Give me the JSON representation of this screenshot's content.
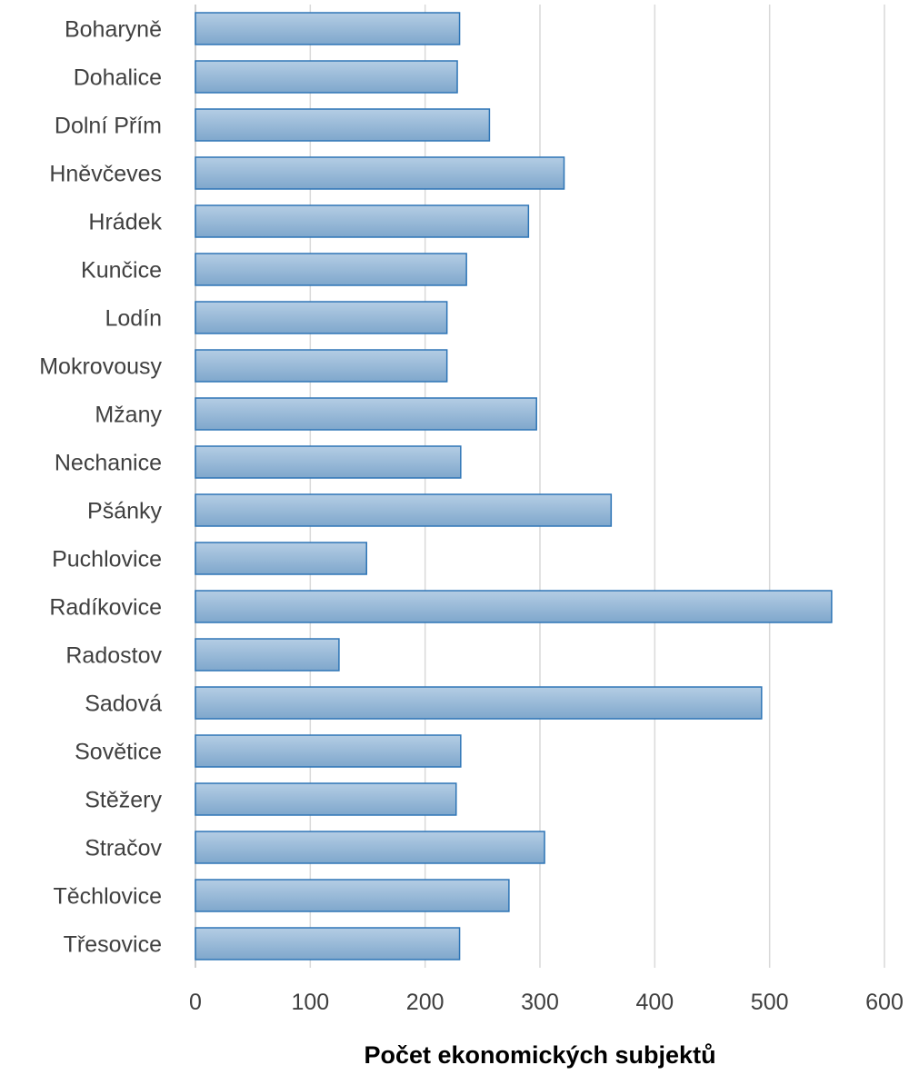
{
  "chart_data": {
    "type": "bar",
    "orientation": "horizontal",
    "categories": [
      "Boharyně",
      "Dohalice",
      "Dolní Přím",
      "Hněvčeves",
      "Hrádek",
      "Kunčice",
      "Lodín",
      "Mokrovousy",
      "Mžany",
      "Nechanice",
      "Pšánky",
      "Puchlovice",
      "Radíkovice",
      "Radostov",
      "Sadová",
      "Sovětice",
      "Stěžery",
      "Stračov",
      "Těchlovice",
      "Třesovice"
    ],
    "values": [
      230,
      228,
      256,
      321,
      290,
      236,
      219,
      219,
      297,
      231,
      362,
      149,
      554,
      125,
      493,
      231,
      227,
      304,
      273,
      230
    ],
    "xlabel": "Počet ekonomických subjektů",
    "xlim": [
      0,
      600
    ],
    "xticks": [
      0,
      100,
      200,
      300,
      400,
      500,
      600
    ],
    "grid": "vertical",
    "legend": "none",
    "colors": {
      "bar_top": "#b4cde4",
      "bar_bottom": "#7fa7cc",
      "bar_border": "#2e75b6",
      "grid": "#d9d9d9",
      "text": "#404040"
    }
  }
}
